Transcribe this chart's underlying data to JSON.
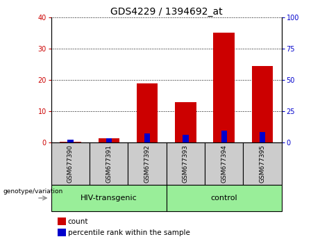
{
  "title": "GDS4229 / 1394692_at",
  "categories": [
    "GSM677390",
    "GSM677391",
    "GSM677392",
    "GSM677393",
    "GSM677394",
    "GSM677395"
  ],
  "count_values": [
    0.3,
    1.5,
    19.0,
    13.0,
    35.0,
    24.5
  ],
  "percentile_values": [
    2.5,
    3.5,
    7.2,
    6.5,
    9.5,
    8.5
  ],
  "left_ylim": [
    0,
    40
  ],
  "right_ylim": [
    0,
    100
  ],
  "left_yticks": [
    0,
    10,
    20,
    30,
    40
  ],
  "right_yticks": [
    0,
    25,
    50,
    75,
    100
  ],
  "count_color": "#cc0000",
  "percentile_color": "#0000cc",
  "group1_label": "HIV-transgenic",
  "group2_label": "control",
  "group1_indices": [
    0,
    1,
    2
  ],
  "group2_indices": [
    3,
    4,
    5
  ],
  "group_bg_color": "#99ee99",
  "sample_bg_color": "#cccccc",
  "genotype_label": "genotype/variation",
  "legend_count": "count",
  "legend_percentile": "percentile rank within the sample",
  "tick_fontsize": 7,
  "title_fontsize": 10,
  "count_bar_width": 0.55,
  "percentile_bar_width": 0.15
}
